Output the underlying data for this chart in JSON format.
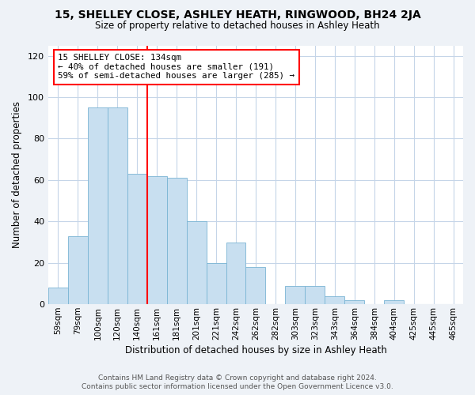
{
  "title": "15, SHELLEY CLOSE, ASHLEY HEATH, RINGWOOD, BH24 2JA",
  "subtitle": "Size of property relative to detached houses in Ashley Heath",
  "xlabel": "Distribution of detached houses by size in Ashley Heath",
  "ylabel": "Number of detached properties",
  "bin_labels": [
    "59sqm",
    "79sqm",
    "100sqm",
    "120sqm",
    "140sqm",
    "161sqm",
    "181sqm",
    "201sqm",
    "221sqm",
    "242sqm",
    "262sqm",
    "282sqm",
    "303sqm",
    "323sqm",
    "343sqm",
    "364sqm",
    "384sqm",
    "404sqm",
    "425sqm",
    "445sqm",
    "465sqm"
  ],
  "bar_heights": [
    8,
    33,
    95,
    95,
    63,
    62,
    61,
    40,
    20,
    30,
    18,
    0,
    9,
    9,
    4,
    2,
    0,
    2,
    0,
    0,
    0
  ],
  "bar_color": "#c8dff0",
  "bar_edge_color": "#7ab4d4",
  "vline_color": "red",
  "vline_label_idx": 4,
  "annotation_text": "15 SHELLEY CLOSE: 134sqm\n← 40% of detached houses are smaller (191)\n59% of semi-detached houses are larger (285) →",
  "annotation_box_color": "white",
  "annotation_box_edge_color": "red",
  "ylim": [
    0,
    125
  ],
  "yticks": [
    0,
    20,
    40,
    60,
    80,
    100,
    120
  ],
  "footer_line1": "Contains HM Land Registry data © Crown copyright and database right 2024.",
  "footer_line2": "Contains public sector information licensed under the Open Government Licence v3.0.",
  "bg_color": "#eef2f7",
  "plot_bg_color": "white",
  "grid_color": "#c5d5e8"
}
